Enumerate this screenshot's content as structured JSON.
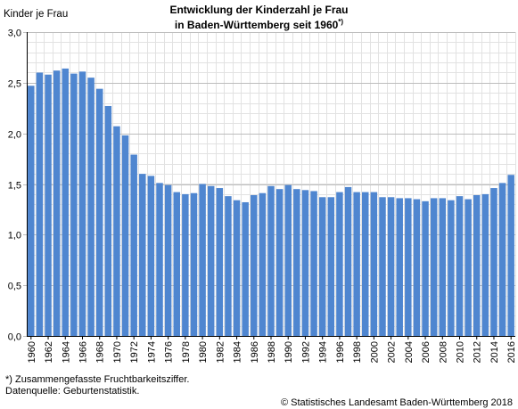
{
  "chart_data": {
    "type": "bar",
    "title_line1": "Entwicklung der Kinderzahl je Frau",
    "title_line2": "in Baden-Württemberg seit 1960",
    "title_marker": "*)",
    "ylabel": "Kinder je Frau",
    "xlabel": "",
    "ylim": [
      0,
      3
    ],
    "yticks": [
      "0,0",
      "0,5",
      "1,0",
      "1,5",
      "2,0",
      "2,5",
      "3,0"
    ],
    "grid": true,
    "legend": "none",
    "bar_color": "#4f86d0",
    "categories": [
      "1960",
      "1961",
      "1962",
      "1963",
      "1964",
      "1965",
      "1966",
      "1967",
      "1968",
      "1969",
      "1970",
      "1971",
      "1972",
      "1973",
      "1974",
      "1975",
      "1976",
      "1977",
      "1978",
      "1979",
      "1980",
      "1981",
      "1982",
      "1983",
      "1984",
      "1985",
      "1986",
      "1987",
      "1988",
      "1989",
      "1990",
      "1991",
      "1992",
      "1993",
      "1994",
      "1995",
      "1996",
      "1997",
      "1998",
      "1999",
      "2000",
      "2001",
      "2002",
      "2003",
      "2004",
      "2005",
      "2006",
      "2007",
      "2008",
      "2009",
      "2010",
      "2011",
      "2012",
      "2013",
      "2014",
      "2015",
      "2016"
    ],
    "tick_label_years": [
      "1960",
      "1962",
      "1964",
      "1966",
      "1968",
      "1970",
      "1972",
      "1974",
      "1976",
      "1978",
      "1980",
      "1982",
      "1984",
      "1986",
      "1988",
      "1990",
      "1992",
      "1994",
      "1996",
      "1998",
      "2000",
      "2002",
      "2004",
      "2006",
      "2008",
      "2010",
      "2012",
      "2014",
      "2016"
    ],
    "values": [
      2.47,
      2.6,
      2.58,
      2.62,
      2.64,
      2.59,
      2.61,
      2.55,
      2.44,
      2.27,
      2.07,
      1.98,
      1.79,
      1.6,
      1.58,
      1.51,
      1.49,
      1.42,
      1.4,
      1.41,
      1.5,
      1.48,
      1.46,
      1.38,
      1.34,
      1.32,
      1.39,
      1.41,
      1.48,
      1.45,
      1.49,
      1.45,
      1.44,
      1.43,
      1.37,
      1.37,
      1.42,
      1.47,
      1.42,
      1.42,
      1.42,
      1.37,
      1.37,
      1.36,
      1.36,
      1.35,
      1.33,
      1.36,
      1.36,
      1.34,
      1.38,
      1.35,
      1.39,
      1.4,
      1.46,
      1.51,
      1.59
    ]
  },
  "footnotes": {
    "line1": "*) Zusammengefasste Fruchtbarkeitsziffer.",
    "line2": "Datenquelle: Geburtenstatistik."
  },
  "copyright": "© Statistisches Landesamt Baden-Württemberg 2018"
}
